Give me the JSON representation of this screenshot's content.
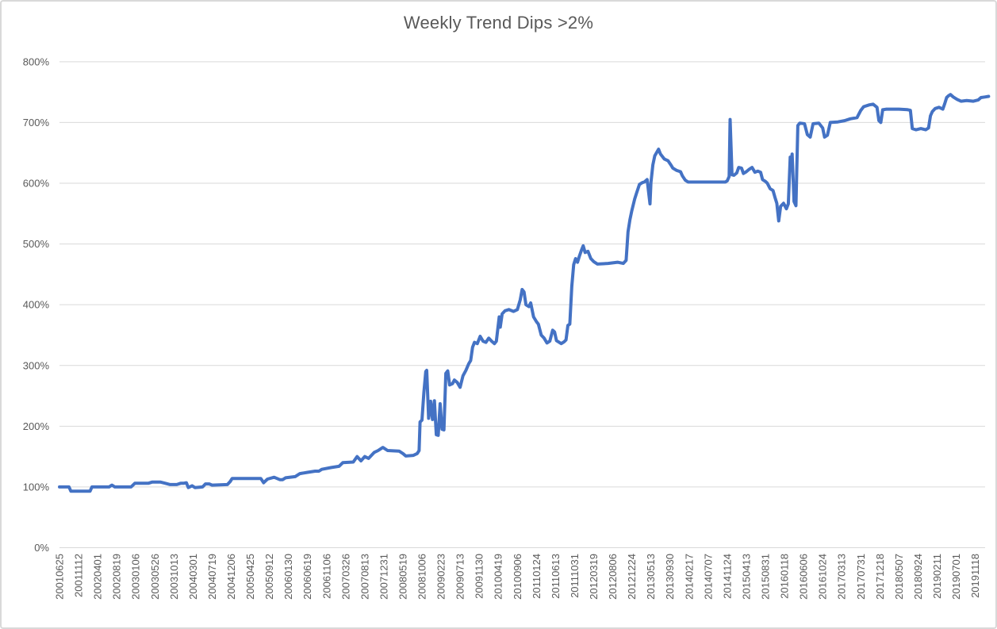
{
  "title": "Weekly Trend Dips >2%",
  "colors": {
    "series_line": "#4472C4",
    "gridline": "#D9D9D9",
    "axis_line": "#D9D9D9",
    "axis_text": "#595959",
    "title_text": "#595959",
    "chart_border": "#D9D9D9",
    "background": "#FFFFFF"
  },
  "chart_data": {
    "type": "line",
    "title": "Weekly Trend Dips >2%",
    "xlabel": "",
    "ylabel": "",
    "legend": "none",
    "grid": "horizontal",
    "y_axis": {
      "min": 0,
      "max": 800,
      "step": 100,
      "tick_labels": [
        "0%",
        "100%",
        "200%",
        "300%",
        "400%",
        "500%",
        "600%",
        "700%",
        "800%"
      ]
    },
    "x_axis": {
      "unit": "weekly dates (YYYYMMDD), one tick every 20 weeks",
      "tick_interval_weeks": 20,
      "tick_labels": [
        "20010625",
        "20011112",
        "20020401",
        "20020819",
        "20030106",
        "20030526",
        "20031013",
        "20040301",
        "20040719",
        "20041206",
        "20050425",
        "20050912",
        "20060130",
        "20060619",
        "20061106",
        "20070326",
        "20070813",
        "20071231",
        "20080519",
        "20081006",
        "20090223",
        "20090713",
        "20091130",
        "20100419",
        "20100906",
        "20110124",
        "20110613",
        "20111031",
        "20120319",
        "20120806",
        "20121224",
        "20130513",
        "20130930",
        "20140217",
        "20140707",
        "20141124",
        "20150413",
        "20150831",
        "20160118",
        "20160606",
        "20161024",
        "20170313",
        "20170731",
        "20171218",
        "20180507",
        "20180924",
        "20190211",
        "20190701",
        "20191118"
      ]
    },
    "series": [
      {
        "name": "Weekly Trend Dips >2%",
        "color": "#4472C4",
        "points_week_pct": [
          [
            0,
            100
          ],
          [
            10,
            100
          ],
          [
            12,
            93
          ],
          [
            32,
            93
          ],
          [
            34,
            100
          ],
          [
            52,
            100
          ],
          [
            55,
            103
          ],
          [
            58,
            100
          ],
          [
            75,
            100
          ],
          [
            79,
            106
          ],
          [
            93,
            106
          ],
          [
            97,
            108
          ],
          [
            106,
            108
          ],
          [
            111,
            106
          ],
          [
            116,
            104
          ],
          [
            123,
            104
          ],
          [
            127,
            106
          ],
          [
            130,
            106
          ],
          [
            133,
            107
          ],
          [
            135,
            99
          ],
          [
            139,
            102
          ],
          [
            142,
            99
          ],
          [
            150,
            100
          ],
          [
            153,
            105
          ],
          [
            157,
            105
          ],
          [
            160,
            103
          ],
          [
            176,
            104
          ],
          [
            179,
            109
          ],
          [
            181,
            114
          ],
          [
            189,
            114
          ],
          [
            211,
            114
          ],
          [
            214,
            107
          ],
          [
            218,
            113
          ],
          [
            225,
            116
          ],
          [
            231,
            112
          ],
          [
            234,
            112
          ],
          [
            237,
            115
          ],
          [
            247,
            117
          ],
          [
            252,
            122
          ],
          [
            260,
            124
          ],
          [
            268,
            126
          ],
          [
            272,
            126
          ],
          [
            275,
            129
          ],
          [
            285,
            132
          ],
          [
            293,
            134
          ],
          [
            297,
            140
          ],
          [
            308,
            141
          ],
          [
            312,
            150
          ],
          [
            316,
            143
          ],
          [
            320,
            150
          ],
          [
            324,
            147
          ],
          [
            330,
            157
          ],
          [
            334,
            160
          ],
          [
            339,
            165
          ],
          [
            344,
            160
          ],
          [
            356,
            159
          ],
          [
            360,
            155
          ],
          [
            363,
            151
          ],
          [
            371,
            152
          ],
          [
            375,
            155
          ],
          [
            377,
            160
          ],
          [
            378,
            207
          ],
          [
            380,
            210
          ],
          [
            382,
            255
          ],
          [
            384,
            290
          ],
          [
            385,
            292
          ],
          [
            387,
            213
          ],
          [
            389,
            241
          ],
          [
            391,
            211
          ],
          [
            393,
            242
          ],
          [
            395,
            186
          ],
          [
            397,
            185
          ],
          [
            399,
            237
          ],
          [
            401,
            195
          ],
          [
            403,
            194
          ],
          [
            405,
            287
          ],
          [
            407,
            291
          ],
          [
            409,
            268
          ],
          [
            412,
            270
          ],
          [
            414,
            276
          ],
          [
            417,
            272
          ],
          [
            420,
            264
          ],
          [
            423,
            283
          ],
          [
            426,
            292
          ],
          [
            429,
            303
          ],
          [
            431,
            308
          ],
          [
            433,
            330
          ],
          [
            435,
            338
          ],
          [
            438,
            336
          ],
          [
            441,
            348
          ],
          [
            444,
            340
          ],
          [
            447,
            338
          ],
          [
            450,
            345
          ],
          [
            453,
            340
          ],
          [
            456,
            336
          ],
          [
            458,
            340
          ],
          [
            461,
            380
          ],
          [
            462,
            363
          ],
          [
            464,
            385
          ],
          [
            467,
            390
          ],
          [
            471,
            392
          ],
          [
            476,
            389
          ],
          [
            480,
            392
          ],
          [
            483,
            408
          ],
          [
            485,
            425
          ],
          [
            487,
            421
          ],
          [
            489,
            400
          ],
          [
            492,
            397
          ],
          [
            494,
            403
          ],
          [
            497,
            380
          ],
          [
            500,
            372
          ],
          [
            502,
            368
          ],
          [
            505,
            350
          ],
          [
            508,
            345
          ],
          [
            511,
            337
          ],
          [
            514,
            340
          ],
          [
            517,
            358
          ],
          [
            519,
            355
          ],
          [
            521,
            341
          ],
          [
            526,
            336
          ],
          [
            529,
            339
          ],
          [
            531,
            342
          ],
          [
            533,
            366
          ],
          [
            535,
            368
          ],
          [
            537,
            430
          ],
          [
            539,
            466
          ],
          [
            541,
            476
          ],
          [
            543,
            470
          ],
          [
            545,
            480
          ],
          [
            547,
            489
          ],
          [
            549,
            497
          ],
          [
            551,
            486
          ],
          [
            554,
            488
          ],
          [
            557,
            476
          ],
          [
            560,
            471
          ],
          [
            564,
            467
          ],
          [
            575,
            468
          ],
          [
            585,
            470
          ],
          [
            591,
            468
          ],
          [
            594,
            473
          ],
          [
            596,
            520
          ],
          [
            598,
            540
          ],
          [
            600,
            555
          ],
          [
            603,
            574
          ],
          [
            605,
            584
          ],
          [
            608,
            598
          ],
          [
            611,
            601
          ],
          [
            613,
            602
          ],
          [
            616,
            606
          ],
          [
            619,
            566
          ],
          [
            620,
            601
          ],
          [
            622,
            630
          ],
          [
            624,
            645
          ],
          [
            628,
            656
          ],
          [
            630,
            648
          ],
          [
            634,
            640
          ],
          [
            638,
            637
          ],
          [
            641,
            630
          ],
          [
            643,
            625
          ],
          [
            647,
            621
          ],
          [
            651,
            619
          ],
          [
            653,
            612
          ],
          [
            656,
            605
          ],
          [
            659,
            602
          ],
          [
            670,
            602
          ],
          [
            690,
            602
          ],
          [
            698,
            602
          ],
          [
            700,
            604
          ],
          [
            702,
            611
          ],
          [
            703,
            705
          ],
          [
            704,
            660
          ],
          [
            705,
            614
          ],
          [
            707,
            613
          ],
          [
            710,
            617
          ],
          [
            712,
            626
          ],
          [
            715,
            625
          ],
          [
            717,
            616
          ],
          [
            720,
            619
          ],
          [
            723,
            623
          ],
          [
            726,
            626
          ],
          [
            729,
            618
          ],
          [
            732,
            620
          ],
          [
            735,
            618
          ],
          [
            737,
            606
          ],
          [
            740,
            603
          ],
          [
            742,
            600
          ],
          [
            745,
            591
          ],
          [
            748,
            588
          ],
          [
            750,
            577
          ],
          [
            752,
            567
          ],
          [
            754,
            538
          ],
          [
            756,
            562
          ],
          [
            759,
            567
          ],
          [
            762,
            558
          ],
          [
            764,
            566
          ],
          [
            766,
            643
          ],
          [
            767,
            633
          ],
          [
            768,
            648
          ],
          [
            770,
            570
          ],
          [
            772,
            563
          ],
          [
            774,
            695
          ],
          [
            776,
            699
          ],
          [
            781,
            698
          ],
          [
            784,
            680
          ],
          [
            787,
            676
          ],
          [
            790,
            698
          ],
          [
            796,
            699
          ],
          [
            800,
            691
          ],
          [
            802,
            676
          ],
          [
            805,
            679
          ],
          [
            808,
            700
          ],
          [
            816,
            701
          ],
          [
            823,
            703
          ],
          [
            829,
            706
          ],
          [
            836,
            708
          ],
          [
            840,
            720
          ],
          [
            843,
            726
          ],
          [
            849,
            729
          ],
          [
            853,
            730
          ],
          [
            857,
            725
          ],
          [
            859,
            703
          ],
          [
            861,
            700
          ],
          [
            863,
            721
          ],
          [
            867,
            722
          ],
          [
            880,
            722
          ],
          [
            889,
            721
          ],
          [
            892,
            720
          ],
          [
            894,
            690
          ],
          [
            898,
            688
          ],
          [
            903,
            690
          ],
          [
            908,
            688
          ],
          [
            911,
            691
          ],
          [
            913,
            711
          ],
          [
            915,
            718
          ],
          [
            918,
            723
          ],
          [
            922,
            725
          ],
          [
            926,
            722
          ],
          [
            928,
            731
          ],
          [
            930,
            741
          ],
          [
            932,
            744
          ],
          [
            934,
            746
          ],
          [
            937,
            742
          ],
          [
            941,
            738
          ],
          [
            945,
            735
          ],
          [
            951,
            736
          ],
          [
            958,
            735
          ],
          [
            963,
            737
          ],
          [
            966,
            741
          ],
          [
            970,
            742
          ],
          [
            974,
            743
          ]
        ]
      }
    ]
  }
}
